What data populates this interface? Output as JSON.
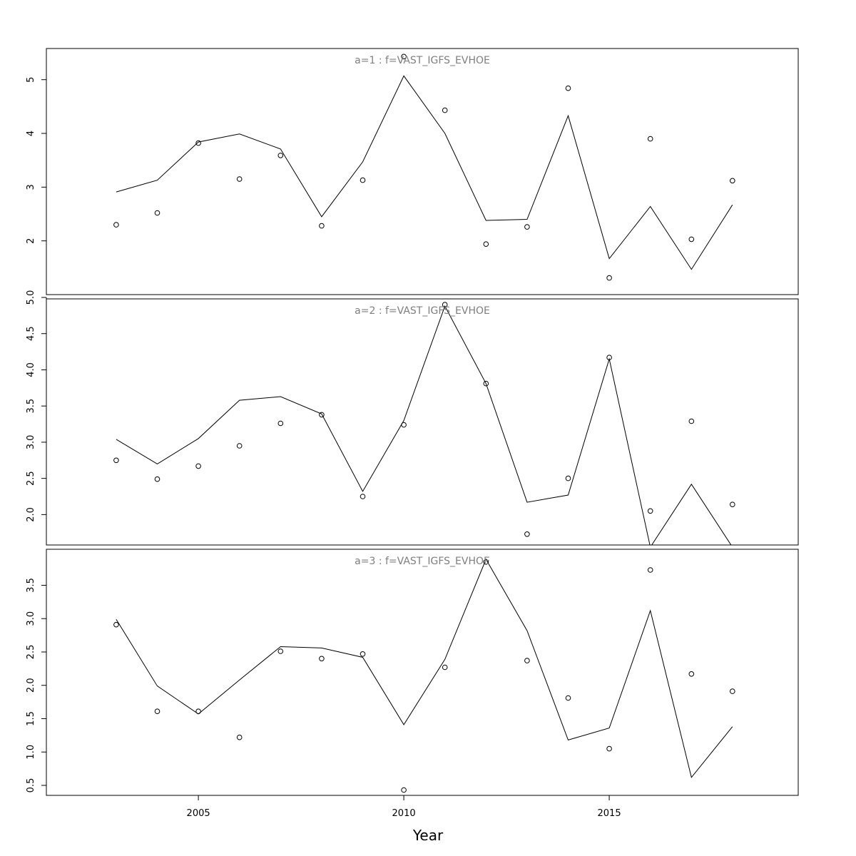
{
  "chart_data": {
    "type": "line",
    "xlabel": "Year",
    "xlim": [
      2001.3,
      2019.6
    ],
    "xticks": [
      2005,
      2010,
      2015
    ],
    "x": [
      2003,
      2004,
      2005,
      2006,
      2007,
      2008,
      2009,
      2010,
      2011,
      2012,
      2013,
      2014,
      2015,
      2016,
      2017,
      2018
    ],
    "panels": [
      {
        "title": "a=1  :  f=VAST_IGFS_EVHOE",
        "ylim": [
          1.0,
          5.58
        ],
        "yticks": [
          2,
          3,
          4,
          5
        ],
        "ytick_labels": [
          "2",
          "3",
          "4",
          "5"
        ],
        "fitted": [
          2.91,
          3.13,
          3.84,
          3.99,
          3.71,
          2.45,
          3.47,
          5.07,
          4.0,
          2.38,
          2.4,
          4.33,
          1.67,
          2.64,
          1.47,
          2.67
        ],
        "observed": [
          2.3,
          2.52,
          3.82,
          3.15,
          3.59,
          2.28,
          3.13,
          5.43,
          4.43,
          1.94,
          2.26,
          4.84,
          1.31,
          3.9,
          2.03,
          3.12
        ]
      },
      {
        "title": "a=2  :  f=VAST_IGFS_EVHOE",
        "ylim": [
          1.58,
          4.98
        ],
        "yticks": [
          2.0,
          2.5,
          3.0,
          3.5,
          4.0,
          4.5,
          5.0
        ],
        "ytick_labels": [
          "2.0",
          "2.5",
          "3.0",
          "3.5",
          "4.0",
          "4.5",
          "5.0"
        ],
        "fitted": [
          3.04,
          2.7,
          3.05,
          3.58,
          3.63,
          3.39,
          2.32,
          3.3,
          4.88,
          3.81,
          2.17,
          2.27,
          4.15,
          1.55,
          2.42,
          1.55
        ],
        "observed": [
          2.75,
          2.49,
          2.67,
          2.95,
          3.26,
          3.38,
          2.25,
          3.24,
          4.9,
          3.81,
          1.73,
          2.5,
          4.17,
          2.05,
          3.29,
          2.14
        ]
      },
      {
        "title": "a=3  :  f=VAST_IGFS_EVHOE",
        "ylim": [
          0.35,
          4.04
        ],
        "yticks": [
          0.5,
          1.0,
          1.5,
          2.0,
          2.5,
          3.0,
          3.5
        ],
        "ytick_labels": [
          "0.5",
          "1.0",
          "1.5",
          "2.0",
          "2.5",
          "3.0",
          "3.5"
        ],
        "fitted": [
          2.99,
          1.99,
          1.57,
          2.08,
          2.58,
          2.56,
          2.42,
          1.41,
          2.39,
          3.89,
          2.82,
          1.18,
          1.36,
          3.12,
          0.62,
          1.38
        ],
        "observed": [
          2.91,
          1.61,
          1.61,
          1.22,
          2.51,
          2.4,
          2.47,
          0.43,
          2.27,
          3.85,
          2.37,
          1.81,
          1.05,
          3.73,
          2.17,
          1.91
        ]
      }
    ]
  }
}
